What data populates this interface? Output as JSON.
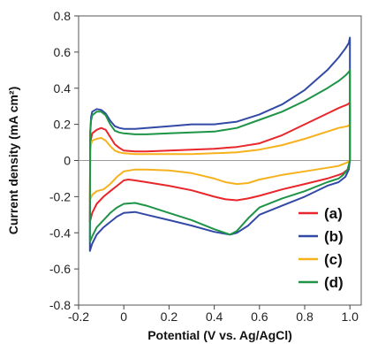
{
  "chart_data": {
    "type": "line",
    "xlabel": "Potential (V vs. Ag/AgCl)",
    "ylabel": "Current density (mA cm²)",
    "xlim": [
      -0.2,
      1.05
    ],
    "ylim": [
      -0.8,
      0.8
    ],
    "xticks": [
      -0.2,
      0,
      0.2,
      0.4,
      0.6,
      0.8,
      1.0
    ],
    "xtick_labels": [
      "-0.2",
      "0",
      "0.2",
      "0.4",
      "0.6",
      "0.8",
      "1.0"
    ],
    "yticks": [
      -0.8,
      -0.6,
      -0.4,
      -0.2,
      0,
      0.2,
      0.4,
      0.6,
      0.8
    ],
    "ytick_labels": [
      "-0.8",
      "-0.6",
      "-0.4",
      "-0.2",
      "0",
      "0.2",
      "0.4",
      "0.6",
      "0.8"
    ],
    "grid": false,
    "legend_position": "bottom-right",
    "series": [
      {
        "name": "(a)",
        "color": "#e8262b",
        "x": [
          -0.15,
          -0.149,
          -0.145,
          -0.14,
          -0.12,
          -0.1,
          -0.08,
          -0.06,
          -0.04,
          -0.02,
          0,
          0.05,
          0.1,
          0.2,
          0.3,
          0.4,
          0.5,
          0.6,
          0.7,
          0.8,
          0.9,
          0.95,
          0.99,
          1.0,
          1.0,
          0.99,
          0.97,
          0.95,
          0.9,
          0.8,
          0.7,
          0.6,
          0.55,
          0.5,
          0.45,
          0.4,
          0.3,
          0.2,
          0.1,
          0.05,
          0.02,
          0,
          -0.03,
          -0.06,
          -0.09,
          -0.12,
          -0.14,
          -0.15
        ],
        "y": [
          -0.34,
          0.05,
          0.12,
          0.15,
          0.17,
          0.18,
          0.17,
          0.13,
          0.09,
          0.07,
          0.055,
          0.05,
          0.05,
          0.055,
          0.06,
          0.065,
          0.075,
          0.095,
          0.14,
          0.2,
          0.26,
          0.29,
          0.31,
          0.32,
          0.0,
          -0.05,
          -0.07,
          -0.08,
          -0.1,
          -0.13,
          -0.16,
          -0.195,
          -0.21,
          -0.22,
          -0.215,
          -0.2,
          -0.165,
          -0.14,
          -0.12,
          -0.11,
          -0.105,
          -0.11,
          -0.14,
          -0.17,
          -0.2,
          -0.24,
          -0.29,
          -0.34
        ]
      },
      {
        "name": "(b)",
        "color": "#3349a6",
        "x": [
          -0.15,
          -0.149,
          -0.145,
          -0.14,
          -0.12,
          -0.1,
          -0.08,
          -0.06,
          -0.04,
          -0.02,
          0,
          0.05,
          0.1,
          0.2,
          0.3,
          0.4,
          0.5,
          0.6,
          0.7,
          0.8,
          0.9,
          0.95,
          0.98,
          0.995,
          1.0,
          1.0,
          0.995,
          0.98,
          0.95,
          0.9,
          0.8,
          0.7,
          0.6,
          0.55,
          0.5,
          0.47,
          0.4,
          0.3,
          0.2,
          0.1,
          0.05,
          0,
          -0.03,
          -0.06,
          -0.09,
          -0.12,
          -0.14,
          -0.15
        ],
        "y": [
          -0.5,
          0.15,
          0.24,
          0.27,
          0.285,
          0.28,
          0.26,
          0.22,
          0.19,
          0.18,
          0.175,
          0.175,
          0.18,
          0.19,
          0.2,
          0.2,
          0.215,
          0.255,
          0.31,
          0.39,
          0.5,
          0.57,
          0.62,
          0.65,
          0.68,
          0.0,
          -0.05,
          -0.09,
          -0.12,
          -0.14,
          -0.2,
          -0.25,
          -0.3,
          -0.36,
          -0.4,
          -0.41,
          -0.395,
          -0.36,
          -0.33,
          -0.3,
          -0.285,
          -0.29,
          -0.31,
          -0.34,
          -0.37,
          -0.41,
          -0.46,
          -0.5
        ]
      },
      {
        "name": "(c)",
        "color": "#f6b21d",
        "x": [
          -0.15,
          -0.149,
          -0.145,
          -0.14,
          -0.12,
          -0.1,
          -0.08,
          -0.06,
          -0.04,
          -0.02,
          0,
          0.05,
          0.1,
          0.2,
          0.3,
          0.4,
          0.5,
          0.6,
          0.7,
          0.8,
          0.9,
          0.95,
          0.99,
          1.0,
          1.0,
          0.99,
          0.97,
          0.95,
          0.9,
          0.8,
          0.7,
          0.6,
          0.55,
          0.5,
          0.45,
          0.4,
          0.3,
          0.2,
          0.1,
          0.05,
          0,
          -0.03,
          -0.06,
          -0.09,
          -0.12,
          -0.14,
          -0.15
        ],
        "y": [
          -0.22,
          0.05,
          0.09,
          0.11,
          0.12,
          0.125,
          0.11,
          0.08,
          0.055,
          0.045,
          0.04,
          0.035,
          0.035,
          0.035,
          0.035,
          0.04,
          0.045,
          0.06,
          0.085,
          0.12,
          0.16,
          0.18,
          0.19,
          0.2,
          0.0,
          -0.01,
          -0.02,
          -0.03,
          -0.04,
          -0.06,
          -0.08,
          -0.105,
          -0.125,
          -0.13,
          -0.12,
          -0.1,
          -0.07,
          -0.055,
          -0.05,
          -0.05,
          -0.06,
          -0.09,
          -0.13,
          -0.16,
          -0.17,
          -0.19,
          -0.22
        ]
      },
      {
        "name": "(d)",
        "color": "#1e9447",
        "x": [
          -0.15,
          -0.149,
          -0.145,
          -0.14,
          -0.12,
          -0.1,
          -0.08,
          -0.06,
          -0.04,
          -0.02,
          0,
          0.05,
          0.1,
          0.2,
          0.3,
          0.4,
          0.5,
          0.6,
          0.7,
          0.8,
          0.9,
          0.95,
          0.98,
          0.995,
          1.0,
          1.0,
          0.99,
          0.97,
          0.95,
          0.9,
          0.8,
          0.7,
          0.6,
          0.55,
          0.5,
          0.47,
          0.4,
          0.3,
          0.2,
          0.1,
          0.05,
          0,
          -0.03,
          -0.06,
          -0.09,
          -0.12,
          -0.14,
          -0.15
        ],
        "y": [
          -0.45,
          0.15,
          0.22,
          0.25,
          0.27,
          0.27,
          0.25,
          0.2,
          0.165,
          0.155,
          0.15,
          0.145,
          0.145,
          0.15,
          0.155,
          0.16,
          0.18,
          0.225,
          0.27,
          0.33,
          0.4,
          0.44,
          0.47,
          0.49,
          0.5,
          0.0,
          -0.05,
          -0.08,
          -0.1,
          -0.12,
          -0.17,
          -0.21,
          -0.26,
          -0.32,
          -0.39,
          -0.41,
          -0.38,
          -0.33,
          -0.29,
          -0.25,
          -0.235,
          -0.24,
          -0.26,
          -0.29,
          -0.33,
          -0.37,
          -0.42,
          -0.45
        ]
      }
    ]
  }
}
